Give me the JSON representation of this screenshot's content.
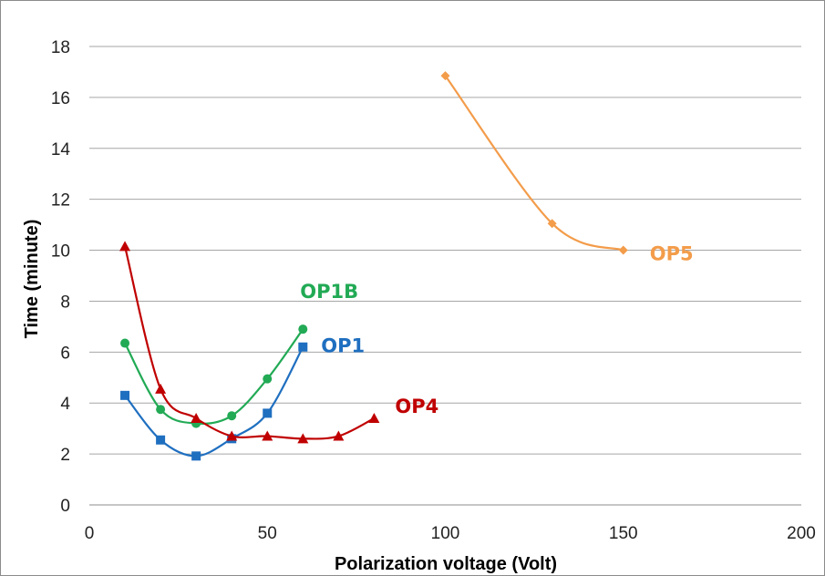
{
  "chart_data": {
    "type": "line",
    "title": "",
    "xlabel": "Polarization voltage (Volt)",
    "ylabel": "Time (minute)",
    "xlim": [
      0,
      200
    ],
    "ylim": [
      0,
      18
    ],
    "xticks": [
      0,
      50,
      100,
      150,
      200
    ],
    "yticks": [
      0,
      2,
      4,
      6,
      8,
      10,
      12,
      14,
      16,
      18
    ],
    "grid": "horizontal",
    "legend": "none; series labeled inline next to the curves",
    "series": [
      {
        "name": "OP1",
        "color": "#1f6fc0",
        "marker": "square",
        "x": [
          10,
          20,
          30,
          40,
          50,
          60
        ],
        "y": [
          4.3,
          2.55,
          1.92,
          2.6,
          3.6,
          6.2
        ]
      },
      {
        "name": "OP1B",
        "color": "#22aa55",
        "marker": "circle",
        "x": [
          10,
          20,
          30,
          40,
          50,
          60
        ],
        "y": [
          6.35,
          3.75,
          3.2,
          3.5,
          4.95,
          6.9
        ]
      },
      {
        "name": "OP4",
        "color": "#c00000",
        "marker": "triangle",
        "x": [
          10,
          20,
          30,
          40,
          50,
          60,
          70,
          80
        ],
        "y": [
          10.15,
          4.55,
          3.4,
          2.7,
          2.7,
          2.6,
          2.7,
          3.4
        ]
      },
      {
        "name": "OP5",
        "color": "#f39c4a",
        "marker": "diamond",
        "x": [
          100,
          130,
          150
        ],
        "y": [
          16.85,
          11.05,
          10.0
        ]
      }
    ]
  }
}
